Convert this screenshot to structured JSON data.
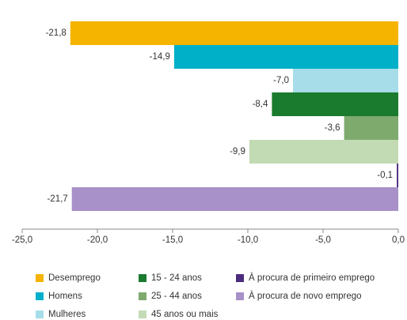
{
  "chart_data": {
    "type": "bar",
    "orientation": "horizontal",
    "series": [
      {
        "name": "Desemprego",
        "color": "#f5b400",
        "values": [
          -21.8
        ],
        "value_labels": [
          "-21,8"
        ]
      },
      {
        "name": "Homens",
        "color": "#00b0c8",
        "values": [
          -14.9
        ],
        "value_labels": [
          "-14,9"
        ]
      },
      {
        "name": "Mulheres",
        "color": "#a6dde8",
        "values": [
          -7.0
        ],
        "value_labels": [
          "-7,0"
        ]
      },
      {
        "name": "15 - 24 anos",
        "color": "#1a7a2e",
        "values": [
          -8.4
        ],
        "value_labels": [
          "-8,4"
        ]
      },
      {
        "name": "25 - 44 anos",
        "color": "#7eaa6e",
        "values": [
          -3.6
        ],
        "value_labels": [
          "-3,6"
        ]
      },
      {
        "name": "45 anos ou mais",
        "color": "#c3dbb4",
        "values": [
          -9.9
        ],
        "value_labels": [
          "-9,9"
        ]
      },
      {
        "name": "À procura de primeiro emprego",
        "color": "#4b2c7f",
        "values": [
          -0.1
        ],
        "value_labels": [
          "-0,1"
        ]
      },
      {
        "name": "À procura de novo emprego",
        "color": "#a890c8",
        "values": [
          -21.7
        ],
        "value_labels": [
          "-21,7"
        ]
      }
    ],
    "xlim": [
      -25,
      0
    ],
    "xticks": [
      {
        "value": -25,
        "label": "-25,0"
      },
      {
        "value": -20,
        "label": "-20,0"
      },
      {
        "value": -15,
        "label": "-15,0"
      },
      {
        "value": -10,
        "label": "-10,0"
      },
      {
        "value": -5,
        "label": "-5,0"
      },
      {
        "value": 0,
        "label": "0,0"
      }
    ],
    "legend": "bottom"
  }
}
